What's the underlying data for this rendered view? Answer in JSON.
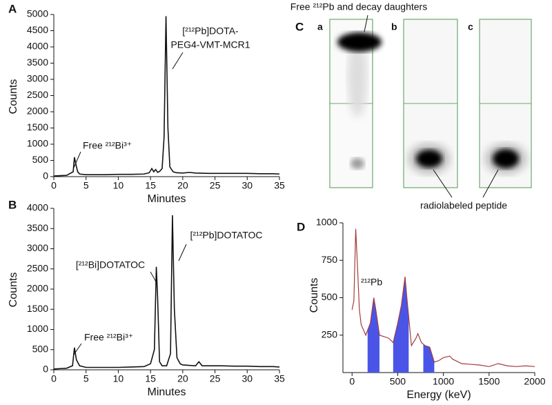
{
  "chart_data": [
    {
      "type": "line",
      "panel": "A",
      "xlabel": "Minutes",
      "ylabel": "Counts",
      "color": "#111111",
      "x": [
        0,
        1,
        2,
        3,
        3.2,
        3.4,
        3.7,
        4,
        5,
        6,
        8,
        10,
        12,
        14,
        14.8,
        15.2,
        15.5,
        15.8,
        16.1,
        16.4,
        16.8,
        17.1,
        17.4,
        17.7,
        18,
        18.5,
        19,
        20,
        21,
        22,
        24,
        26,
        28,
        30,
        32,
        34,
        35
      ],
      "values": [
        20,
        30,
        40,
        150,
        600,
        400,
        150,
        80,
        60,
        60,
        60,
        70,
        70,
        80,
        120,
        250,
        150,
        220,
        130,
        160,
        250,
        1200,
        4950,
        1500,
        300,
        150,
        120,
        110,
        130,
        110,
        100,
        100,
        100,
        100,
        90,
        90,
        80
      ],
      "xlim": [
        0,
        35
      ],
      "xticks": [
        0,
        5,
        10,
        15,
        20,
        25,
        30,
        35
      ],
      "ylim": [
        0,
        5000
      ],
      "yticks": [
        0,
        500,
        1000,
        1500,
        2000,
        2500,
        3000,
        3500,
        4000,
        4500,
        5000
      ],
      "annotations": [
        "Free ²¹²Bi³⁺",
        "[²¹²Pb]DOTA-",
        "PEG4-VMT-MCR1"
      ]
    },
    {
      "type": "line",
      "panel": "B",
      "xlabel": "Minutes",
      "ylabel": "Counts",
      "color": "#111111",
      "x": [
        0,
        1,
        2,
        2.9,
        3.2,
        3.5,
        4,
        5,
        6,
        8,
        10,
        12,
        14,
        15,
        15.6,
        15.9,
        16.1,
        16.4,
        16.8,
        17.5,
        18.1,
        18.4,
        18.7,
        19.1,
        19.6,
        20,
        21,
        22,
        22.5,
        23,
        24,
        26,
        28,
        30,
        32,
        34,
        35
      ],
      "values": [
        20,
        30,
        40,
        100,
        550,
        250,
        100,
        60,
        60,
        60,
        60,
        70,
        80,
        150,
        500,
        2550,
        1800,
        200,
        100,
        100,
        400,
        3830,
        1500,
        300,
        150,
        120,
        110,
        100,
        200,
        100,
        100,
        100,
        90,
        90,
        80,
        80,
        70
      ],
      "xlim": [
        0,
        35
      ],
      "xticks": [
        0,
        5,
        10,
        15,
        20,
        25,
        30,
        35
      ],
      "ylim": [
        0,
        4000
      ],
      "yticks": [
        0,
        500,
        1000,
        1500,
        2000,
        2500,
        3000,
        3500,
        4000
      ],
      "annotations": [
        "Free ²¹²Bi³⁺",
        "[²¹²Bi]DOTATOC",
        "[²¹²Pb]DOTATOC"
      ]
    },
    {
      "type": "image",
      "panel": "C",
      "lane_labels": [
        "a",
        "b",
        "c"
      ],
      "annotations": [
        "Free ²¹²Pb and decay daughters",
        "radiolabeled peptide"
      ]
    },
    {
      "type": "spectrum",
      "panel": "D",
      "xlabel": "Energy (keV)",
      "ylabel": "Counts",
      "color": "#a33a3a",
      "fill_color": "#4a55e8",
      "x": [
        0,
        20,
        40,
        60,
        80,
        100,
        150,
        200,
        238,
        260,
        300,
        350,
        400,
        450,
        500,
        540,
        580,
        600,
        650,
        700,
        720,
        760,
        800,
        850,
        880,
        900,
        950,
        1000,
        1070,
        1100,
        1200,
        1300,
        1400,
        1500,
        1600,
        1700,
        1800,
        1900,
        2000
      ],
      "values": [
        420,
        480,
        960,
        700,
        420,
        320,
        250,
        330,
        500,
        420,
        250,
        240,
        230,
        200,
        330,
        450,
        640,
        500,
        180,
        230,
        260,
        200,
        180,
        170,
        110,
        70,
        80,
        100,
        110,
        90,
        60,
        55,
        50,
        40,
        60,
        45,
        40,
        45,
        40
      ],
      "shaded": [
        [
          170,
          300
        ],
        [
          450,
          620
        ],
        [
          780,
          900
        ]
      ],
      "xlim": [
        -100,
        2000
      ],
      "xticks": [
        0,
        500,
        1000,
        1500,
        2000
      ],
      "ylim": [
        0,
        1000
      ],
      "yticks": [
        250,
        500,
        750,
        1000
      ],
      "annotations": [
        "²¹²Pb"
      ]
    }
  ]
}
